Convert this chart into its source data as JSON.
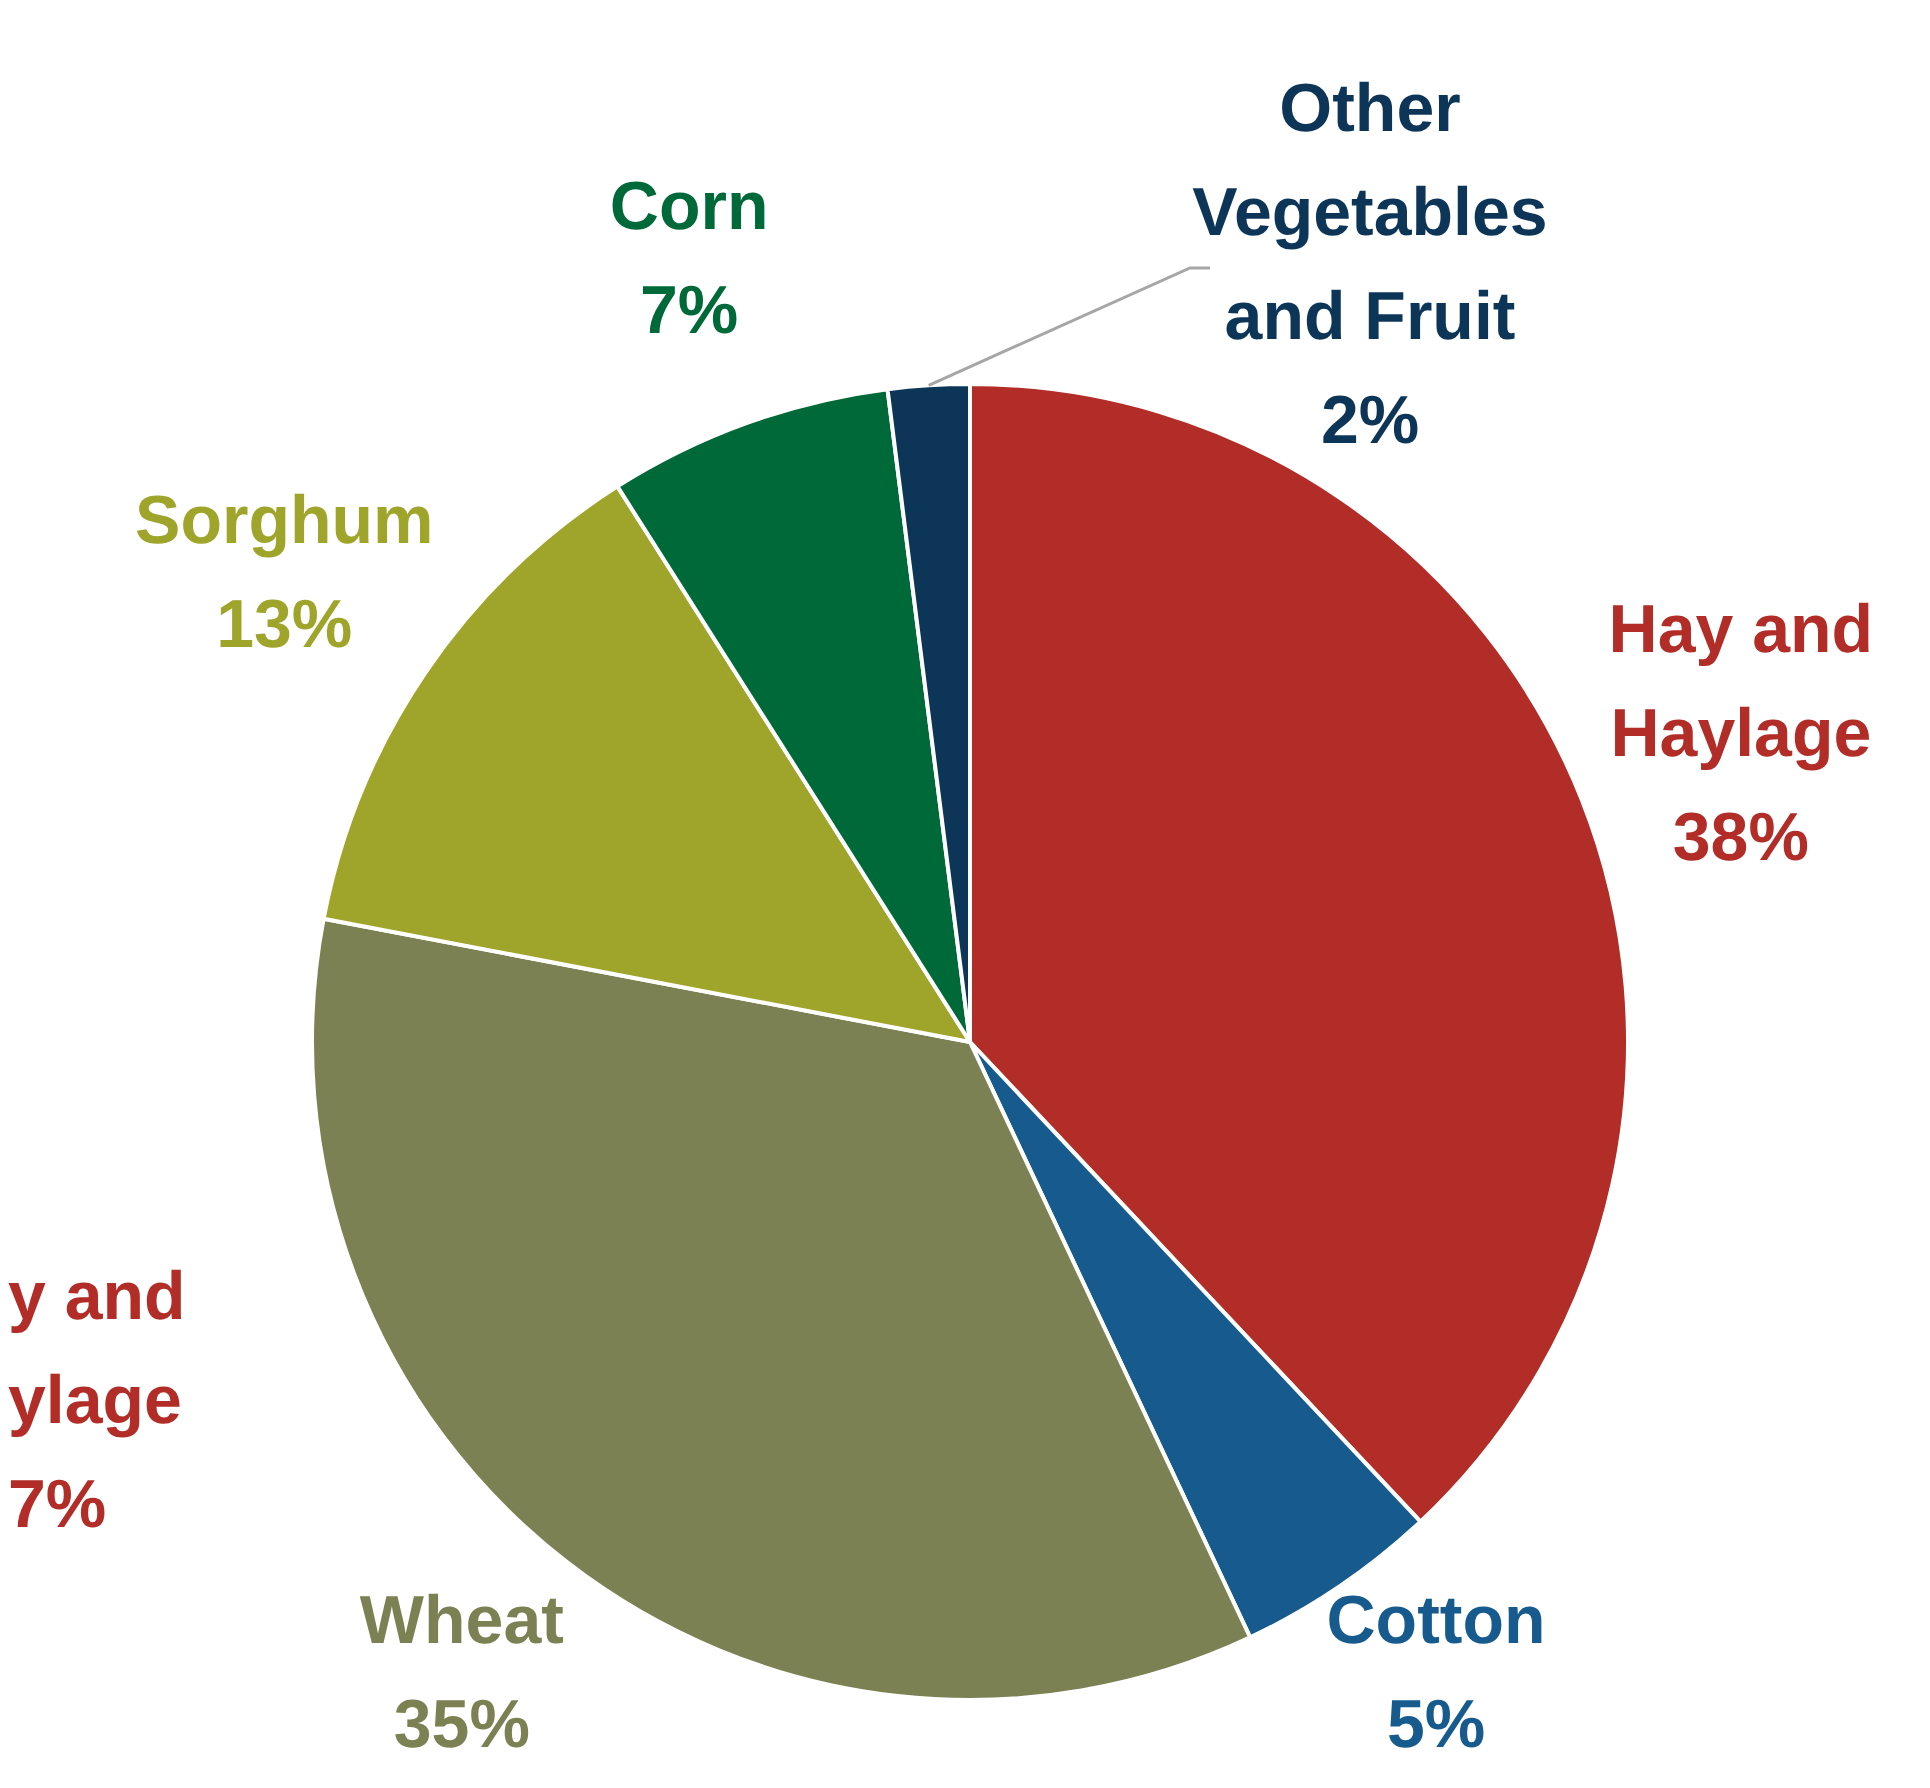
{
  "chart_data": {
    "type": "pie",
    "categories": [
      "Hay and Haylage",
      "Cotton",
      "Wheat",
      "Sorghum",
      "Corn",
      "Other Vegetables and Fruit"
    ],
    "values": [
      38,
      5,
      35,
      13,
      7,
      2
    ],
    "colors": [
      "#b22d27",
      "#165a8e",
      "#7c8154",
      "#9ea52a",
      "#00693a",
      "#0d3558"
    ],
    "value_labels": [
      "38%",
      "5%",
      "35%",
      "13%",
      "7%",
      "2%"
    ],
    "annotations": [
      "y and\nylage\n7%"
    ]
  }
}
